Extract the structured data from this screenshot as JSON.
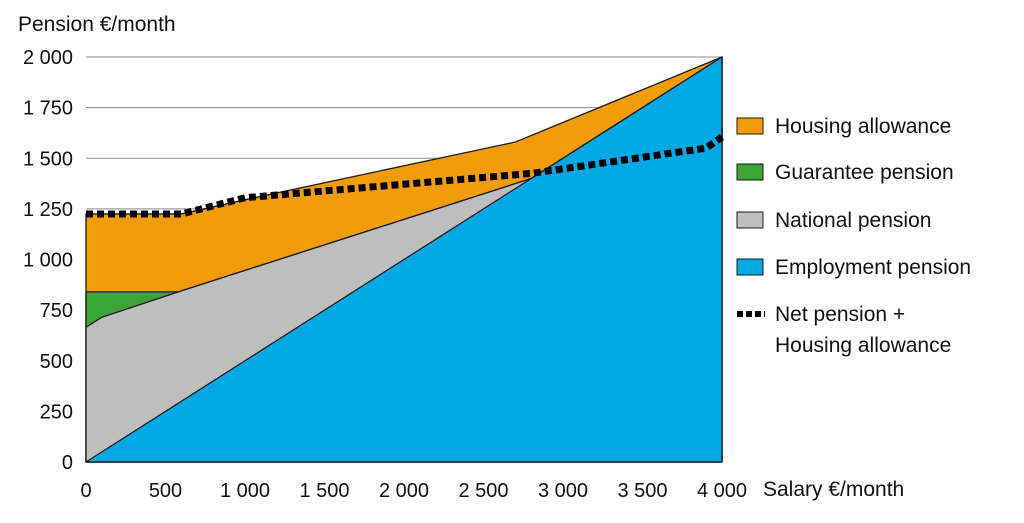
{
  "chart_data": {
    "type": "area",
    "ylabel": "Pension €/month",
    "xlabel": "Salary €/month",
    "xlim": [
      0,
      4000
    ],
    "ylim": [
      0,
      2000
    ],
    "x_ticks": [
      {
        "value": 0,
        "label": "0"
      },
      {
        "value": 500,
        "label": "500"
      },
      {
        "value": 1000,
        "label": "1 000"
      },
      {
        "value": 1500,
        "label": "1 500"
      },
      {
        "value": 2000,
        "label": "2 000"
      },
      {
        "value": 2500,
        "label": "2 500"
      },
      {
        "value": 3000,
        "label": "3 000"
      },
      {
        "value": 3500,
        "label": "3 500"
      },
      {
        "value": 4000,
        "label": "4 000"
      }
    ],
    "y_ticks": [
      {
        "value": 0,
        "label": "0"
      },
      {
        "value": 250,
        "label": "250"
      },
      {
        "value": 500,
        "label": "500"
      },
      {
        "value": 750,
        "label": "750"
      },
      {
        "value": 1000,
        "label": "1 000"
      },
      {
        "value": 1250,
        "label": "1 250"
      },
      {
        "value": 1500,
        "label": "1 500"
      },
      {
        "value": 1750,
        "label": "1 750"
      },
      {
        "value": 2000,
        "label": "2 000"
      }
    ],
    "grid": "horizontal",
    "legend_position": "right",
    "series": [
      {
        "name": "Employment pension",
        "kind": "area",
        "color": "#00a9e3",
        "points": [
          [
            0,
            0
          ],
          [
            4000,
            2000
          ]
        ]
      },
      {
        "name": "National pension",
        "kind": "area",
        "color": "#bfbebe",
        "points": [
          [
            0,
            665
          ],
          [
            100,
            715
          ],
          [
            600,
            845
          ],
          [
            2800,
            1400
          ],
          [
            4000,
            2000
          ]
        ]
      },
      {
        "name": "Guarantee pension",
        "kind": "area",
        "color": "#3da535",
        "points": [
          [
            0,
            840
          ],
          [
            600,
            840
          ],
          [
            600,
            845
          ],
          [
            2800,
            1400
          ],
          [
            4000,
            2000
          ]
        ]
      },
      {
        "name": "Housing allowance",
        "kind": "area",
        "color": "#f39c0a",
        "points": [
          [
            0,
            1225
          ],
          [
            600,
            1225
          ],
          [
            1000,
            1295
          ],
          [
            2700,
            1580
          ],
          [
            4000,
            2000
          ]
        ]
      },
      {
        "name": "Net pension + Housing allowance",
        "kind": "line",
        "style": "dashed",
        "color": "#000000",
        "points": [
          [
            0,
            1225
          ],
          [
            600,
            1225
          ],
          [
            1000,
            1305
          ],
          [
            2800,
            1425
          ],
          [
            3900,
            1550
          ],
          [
            4000,
            1605
          ]
        ]
      }
    ],
    "legend": [
      {
        "label": "Housing allowance",
        "lines": [
          "Housing allowance"
        ],
        "color": "#f39c0a",
        "marker": "box"
      },
      {
        "label": "Guarantee pension",
        "lines": [
          "Guarantee pension"
        ],
        "color": "#3da535",
        "marker": "box"
      },
      {
        "label": "National pension",
        "lines": [
          "National pension"
        ],
        "color": "#bfbebe",
        "marker": "box"
      },
      {
        "label": "Employment pension",
        "lines": [
          "Employment pension"
        ],
        "color": "#00a9e3",
        "marker": "box"
      },
      {
        "label": "Net pension + Housing allowance",
        "lines": [
          "Net pension +",
          "Housing allowance"
        ],
        "color": "#000000",
        "marker": "dash"
      }
    ]
  }
}
